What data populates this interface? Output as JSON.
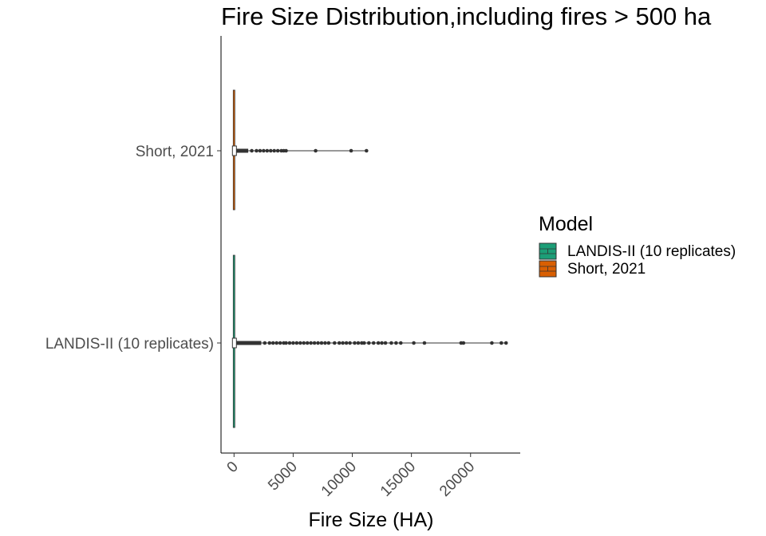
{
  "chart_data": {
    "type": "violin",
    "title": "Fire Size Distribution,including fires > 500 ha",
    "xlabel": "Fire Size (HA)",
    "ylabel": "",
    "xlim": [
      -1100,
      24200
    ],
    "x_ticks": [
      0,
      5000,
      10000,
      15000,
      20000
    ],
    "x_tick_labels": [
      "0",
      "5000",
      "10000",
      "15000",
      "20000"
    ],
    "categories": [
      "Short, 2021",
      "LANDIS-II (10 replicates)"
    ],
    "grid": false,
    "legend": {
      "title": "Model",
      "position": "right",
      "entries": [
        {
          "label": "LANDIS-II (10 replicates)",
          "color": "#1b9e77"
        },
        {
          "label": "Short, 2021",
          "color": "#d95f02"
        }
      ]
    },
    "series": [
      {
        "name": "Short, 2021",
        "color": "#d95f02",
        "whisker_max": 1200,
        "outliers": [
          1500,
          1900,
          2200,
          2500,
          2800,
          3100,
          3400,
          3700,
          4000,
          4200,
          4400,
          6900,
          9900,
          11200
        ]
      },
      {
        "name": "LANDIS-II (10 replicates)",
        "color": "#1b9e77",
        "whisker_max": 2300,
        "outliers": [
          2600,
          3000,
          3300,
          3600,
          3900,
          4200,
          4400,
          4700,
          5000,
          5300,
          5600,
          5900,
          6200,
          6500,
          6800,
          7100,
          7400,
          7700,
          8000,
          8500,
          8900,
          9200,
          9500,
          9800,
          10200,
          10500,
          10800,
          11000,
          11400,
          11800,
          12200,
          12500,
          12800,
          13300,
          13700,
          14100,
          15200,
          16100,
          19200,
          19400,
          21800,
          22600,
          23000
        ]
      }
    ]
  }
}
